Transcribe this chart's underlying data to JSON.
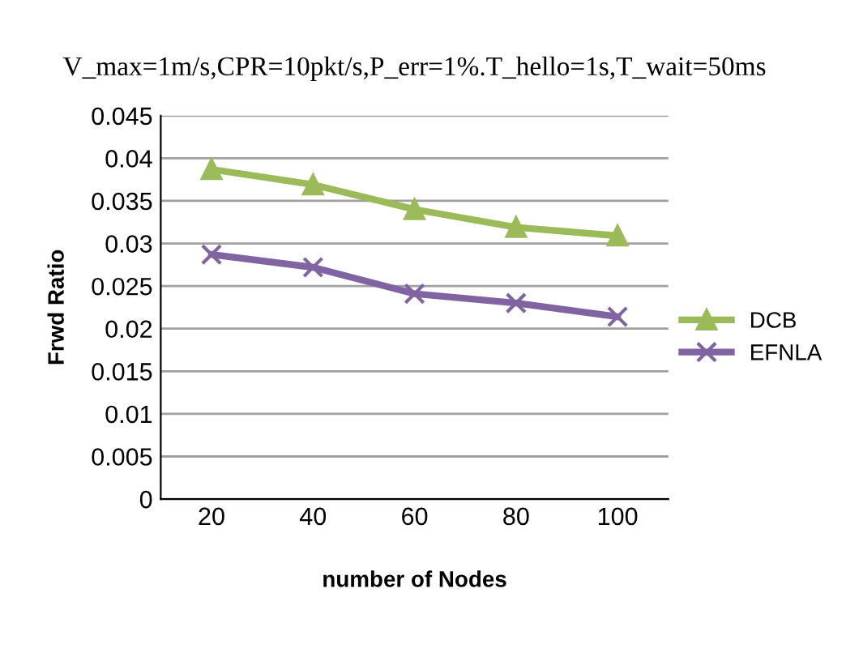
{
  "chart_data": {
    "type": "line",
    "title": "V_max=1m/s,CPR=10pkt/s,P_err=1%.T_hello=1s,T_wait=50ms",
    "xlabel": "number of Nodes",
    "ylabel": "Frwd Ratio",
    "categories": [
      "20",
      "40",
      "60",
      "80",
      "100"
    ],
    "series": [
      {
        "name": "DCB",
        "color": "#9bbb59",
        "marker": "triangle",
        "values": [
          0.0387,
          0.0369,
          0.034,
          0.0319,
          0.0309
        ]
      },
      {
        "name": "EFNLA",
        "color": "#8064a2",
        "marker": "cross",
        "values": [
          0.0287,
          0.0272,
          0.0241,
          0.023,
          0.0214
        ]
      }
    ],
    "ylim": [
      0,
      0.045
    ],
    "yticks": [
      0,
      0.005,
      0.01,
      0.015,
      0.02,
      0.025,
      0.03,
      0.035,
      0.04,
      0.045
    ],
    "grid": "y",
    "legend": "right",
    "line_style": "solid"
  }
}
